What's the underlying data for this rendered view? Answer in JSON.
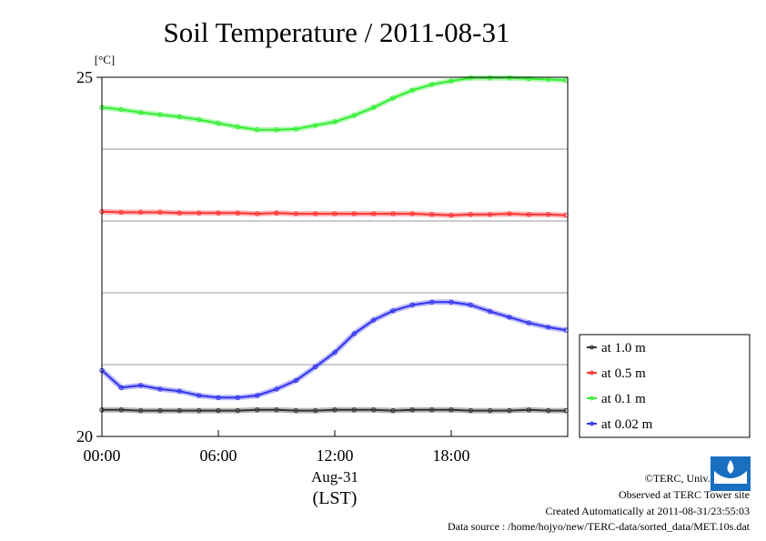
{
  "chart_data": {
    "type": "line",
    "title": "Soil Temperature / 2011-08-31",
    "ylabel": "[°C]",
    "xlabel": "(LST)",
    "date_label": "Aug-31",
    "xlim": [
      "00:00",
      "24:00"
    ],
    "ylim": [
      20,
      25
    ],
    "x_ticks": [
      "00:00",
      "06:00",
      "12:00",
      "18:00"
    ],
    "y_ticks": [
      25,
      20
    ],
    "grid": true,
    "legend_position": "right",
    "x": [
      "00:00",
      "01:00",
      "02:00",
      "03:00",
      "04:00",
      "05:00",
      "06:00",
      "07:00",
      "08:00",
      "09:00",
      "10:00",
      "11:00",
      "12:00",
      "13:00",
      "14:00",
      "15:00",
      "16:00",
      "17:00",
      "18:00",
      "19:00",
      "20:00",
      "21:00",
      "22:00",
      "23:00",
      "23:55"
    ],
    "series": [
      {
        "name": "at 1.0 m",
        "color": "#333333",
        "values": [
          20.37,
          20.37,
          20.36,
          20.36,
          20.36,
          20.36,
          20.36,
          20.36,
          20.37,
          20.37,
          20.36,
          20.36,
          20.37,
          20.37,
          20.37,
          20.36,
          20.37,
          20.37,
          20.37,
          20.36,
          20.36,
          20.36,
          20.37,
          20.36,
          20.36
        ]
      },
      {
        "name": "at 0.5 m",
        "color": "#ff3333",
        "values": [
          23.13,
          23.12,
          23.12,
          23.12,
          23.11,
          23.11,
          23.11,
          23.11,
          23.1,
          23.11,
          23.1,
          23.1,
          23.1,
          23.1,
          23.1,
          23.1,
          23.1,
          23.09,
          23.08,
          23.09,
          23.09,
          23.1,
          23.09,
          23.09,
          23.08
        ]
      },
      {
        "name": "at 0.1 m",
        "color": "#33ee33",
        "values": [
          24.58,
          24.55,
          24.51,
          24.48,
          24.45,
          24.41,
          24.36,
          24.31,
          24.27,
          24.27,
          24.28,
          24.33,
          24.38,
          24.47,
          24.58,
          24.71,
          24.82,
          24.9,
          24.95,
          24.99,
          24.99,
          24.99,
          24.98,
          24.97,
          24.96
        ]
      },
      {
        "name": "at 0.02 m",
        "color": "#3333ee",
        "values": [
          20.92,
          20.68,
          20.71,
          20.66,
          20.63,
          20.57,
          20.54,
          20.54,
          20.57,
          20.66,
          20.78,
          20.97,
          21.17,
          21.43,
          21.62,
          21.75,
          21.83,
          21.87,
          21.87,
          21.83,
          21.74,
          21.66,
          21.58,
          21.52,
          21.48
        ]
      }
    ]
  },
  "footer": {
    "copyright": "©TERC, Univ. Tsukuba",
    "observed": "Observed at TERC Tower site",
    "created": "Created Automatically at 2011-08-31/23:55:03",
    "source": "Data source : /home/hojyo/new/TERC-data/sorted_data/MET.10s.dat"
  },
  "logo_text": "TERC"
}
